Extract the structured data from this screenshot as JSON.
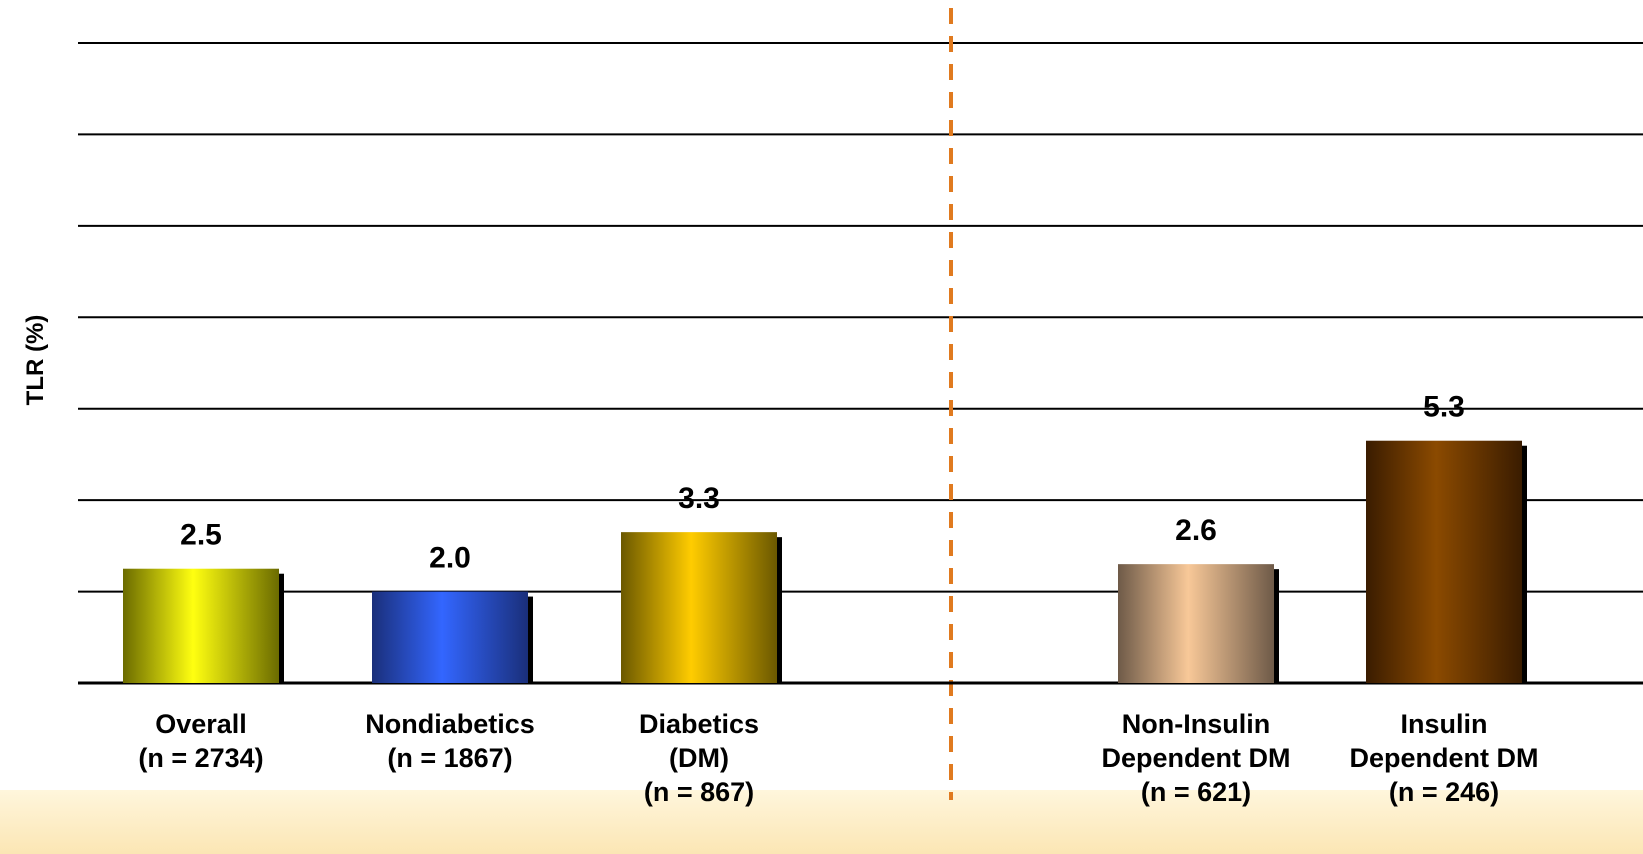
{
  "chart_data": {
    "type": "bar",
    "title": "",
    "xlabel": "",
    "ylabel": "TLR (%)",
    "ylim": [
      0,
      14
    ],
    "grid": true,
    "categories": [
      [
        "Overall",
        "(n = 2734)"
      ],
      [
        "Nondiabetics",
        "(n = 1867)"
      ],
      [
        "Diabetics",
        "(DM)",
        "(n = 867)"
      ],
      [
        "Non-Insulin",
        "Dependent DM",
        "(n = 621)"
      ],
      [
        "Insulin",
        "Dependent DM",
        "(n = 246)"
      ]
    ],
    "values": [
      2.5,
      2.0,
      3.3,
      2.6,
      5.3
    ],
    "value_labels": [
      "2.5",
      "2.0",
      "3.3",
      "2.6",
      "5.3"
    ],
    "bar_colors": [
      {
        "edge": "#6b6b00",
        "center": "#ffff10"
      },
      {
        "edge": "#1a2f7a",
        "center": "#3366ff"
      },
      {
        "edge": "#6b5800",
        "center": "#ffcc00"
      },
      {
        "edge": "#6e5a48",
        "center": "#f8c898"
      },
      {
        "edge": "#3a1c00",
        "center": "#8b4a00"
      }
    ],
    "divider_color": "#e07a1f"
  }
}
